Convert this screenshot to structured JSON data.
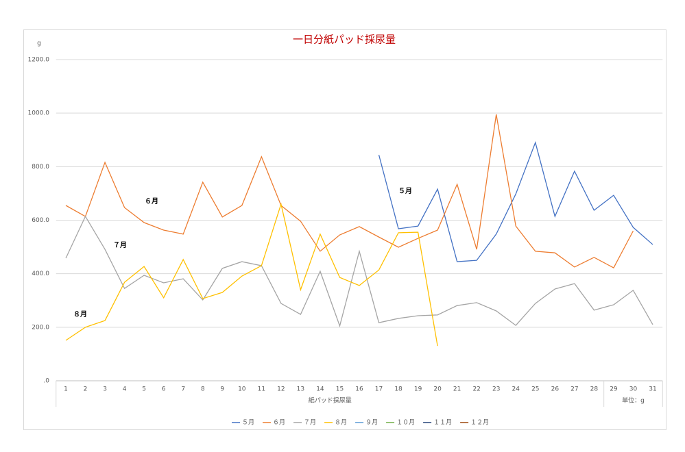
{
  "chart_data": {
    "type": "line",
    "title": "一日分紙パッド採尿量",
    "title_color": "#c00000",
    "y_label": "g",
    "categories": [
      "1",
      "2",
      "3",
      "4",
      "5",
      "6",
      "7",
      "8",
      "9",
      "10",
      "11",
      "12",
      "13",
      "14",
      "15",
      "16",
      "17",
      "18",
      "19",
      "20",
      "21",
      "22",
      "23",
      "24",
      "25",
      "26",
      "27",
      "28",
      "29",
      "30",
      "31"
    ],
    "category_groups": [
      {
        "label": "紙パッド採尿量",
        "count": 28
      },
      {
        "label": "単位：g",
        "count": 3
      }
    ],
    "ylim": [
      0,
      1200
    ],
    "yticks": [
      {
        "value": 0,
        "label": ".0"
      },
      {
        "value": 200,
        "label": "200.0"
      },
      {
        "value": 400,
        "label": "400.0"
      },
      {
        "value": 600,
        "label": "600.0"
      },
      {
        "value": 800,
        "label": "800.0"
      },
      {
        "value": 1000,
        "label": "1000.0"
      },
      {
        "value": 1200,
        "label": "1200.0"
      }
    ],
    "grid": true,
    "legend": "bottom",
    "series": [
      {
        "name": "５月",
        "color": "#4472c4",
        "values": [
          null,
          null,
          null,
          null,
          null,
          null,
          null,
          null,
          null,
          null,
          null,
          null,
          null,
          null,
          null,
          null,
          844,
          568,
          578,
          716,
          445,
          450,
          548,
          698,
          890,
          614,
          783,
          637,
          693,
          573,
          509
        ]
      },
      {
        "name": "６月",
        "color": "#ed7d31",
        "values": [
          655,
          614,
          816,
          647,
          591,
          563,
          548,
          742,
          612,
          655,
          837,
          655,
          596,
          484,
          545,
          576,
          537,
          499,
          532,
          563,
          734,
          491,
          995,
          578,
          484,
          478,
          425,
          461,
          422,
          560,
          null
        ]
      },
      {
        "name": "７月",
        "color": "#a5a5a5",
        "values": [
          458,
          614,
          491,
          345,
          394,
          366,
          381,
          302,
          420,
          445,
          430,
          289,
          248,
          409,
          205,
          484,
          217,
          233,
          243,
          246,
          281,
          292,
          261,
          207,
          289,
          343,
          363,
          264,
          284,
          338,
          210
        ]
      },
      {
        "name": "８月",
        "color": "#ffc000",
        "values": [
          151,
          200,
          225,
          368,
          427,
          310,
          453,
          307,
          330,
          391,
          430,
          660,
          340,
          548,
          386,
          356,
          414,
          553,
          555,
          130,
          null,
          null,
          null,
          null,
          null,
          null,
          null,
          null,
          null,
          null,
          null
        ]
      },
      {
        "name": "９月",
        "color": "#5b9bd5",
        "values": [
          null,
          null,
          null,
          null,
          null,
          null,
          null,
          null,
          null,
          null,
          null,
          null,
          null,
          null,
          null,
          null,
          null,
          null,
          null,
          null,
          null,
          null,
          null,
          null,
          null,
          null,
          null,
          null,
          null,
          null,
          null
        ]
      },
      {
        "name": "１０月",
        "color": "#70ad47",
        "values": [
          null,
          null,
          null,
          null,
          null,
          null,
          null,
          null,
          null,
          null,
          null,
          null,
          null,
          null,
          null,
          null,
          null,
          null,
          null,
          null,
          null,
          null,
          null,
          null,
          null,
          null,
          null,
          null,
          null,
          null,
          null
        ]
      },
      {
        "name": "１１月",
        "color": "#264478",
        "values": [
          null,
          null,
          null,
          null,
          null,
          null,
          null,
          null,
          null,
          null,
          null,
          null,
          null,
          null,
          null,
          null,
          null,
          null,
          null,
          null,
          null,
          null,
          null,
          null,
          null,
          null,
          null,
          null,
          null,
          null,
          null
        ]
      },
      {
        "name": "１２月",
        "color": "#9e480e",
        "values": [
          null,
          null,
          null,
          null,
          null,
          null,
          null,
          null,
          null,
          null,
          null,
          null,
          null,
          null,
          null,
          null,
          null,
          null,
          null,
          null,
          null,
          null,
          null,
          null,
          null,
          null,
          null,
          null,
          null,
          null,
          null
        ]
      }
    ],
    "annotations": [
      "６月",
      "７月",
      "８月",
      "５月"
    ]
  }
}
